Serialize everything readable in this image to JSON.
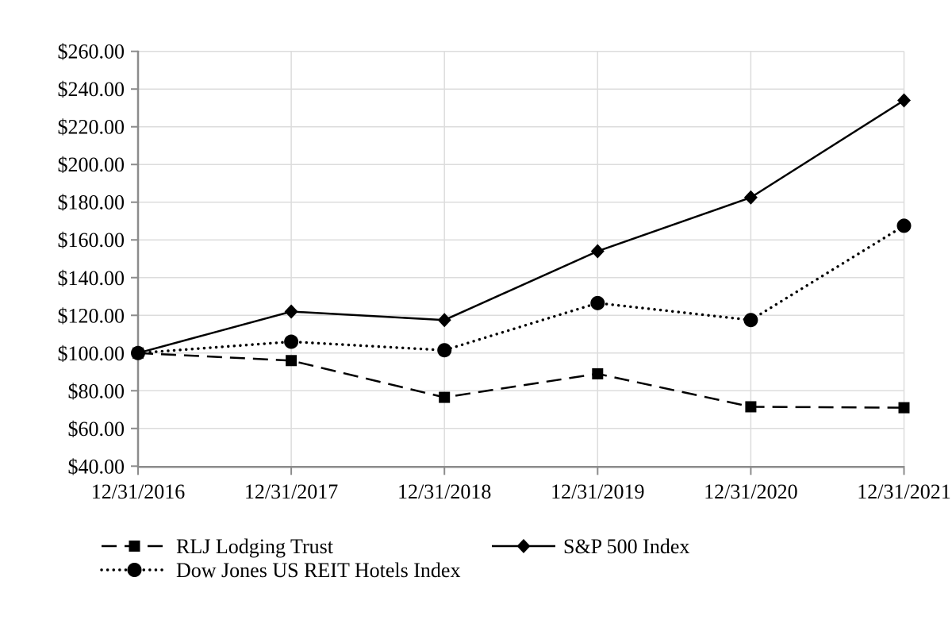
{
  "chart_data": {
    "type": "line",
    "title": "",
    "xlabel": "",
    "ylabel": "",
    "categories": [
      "12/31/2016",
      "12/31/2017",
      "12/31/2018",
      "12/31/2019",
      "12/31/2020",
      "12/31/2021"
    ],
    "series": [
      {
        "name": "RLJ Lodging Trust",
        "line_style": "dashed",
        "marker": "square",
        "values": [
          100.0,
          96.0,
          76.5,
          89.0,
          71.5,
          71.0
        ]
      },
      {
        "name": "S&P 500 Index",
        "line_style": "solid",
        "marker": "diamond",
        "values": [
          100.0,
          122.0,
          117.5,
          154.0,
          182.5,
          234.0
        ]
      },
      {
        "name": "Dow Jones US REIT Hotels Index",
        "line_style": "dotted",
        "marker": "circle",
        "values": [
          100.0,
          106.0,
          101.5,
          126.5,
          117.5,
          167.5
        ]
      }
    ],
    "ylim": [
      40,
      260
    ],
    "ytick_step": 20,
    "ytick_labels": [
      "$40.00",
      "$60.00",
      "$80.00",
      "$100.00",
      "$120.00",
      "$140.00",
      "$160.00",
      "$180.00",
      "$200.00",
      "$220.00",
      "$240.00",
      "$260.00"
    ],
    "xtick_labels": [
      "12/31/2016",
      "12/31/2017",
      "12/31/2018",
      "12/31/2019",
      "12/31/2020",
      "12/31/2021"
    ],
    "grid": true,
    "legend_position": "bottom-left",
    "legend_rows": [
      [
        "RLJ Lodging Trust",
        "S&P 500 Index"
      ],
      [
        "Dow Jones US REIT Hotels Index"
      ]
    ],
    "colors": {
      "series": "#000000",
      "axis": "#8c8c8c",
      "gridline": "#dcdcdc",
      "background": "#ffffff",
      "text": "#000000"
    }
  }
}
